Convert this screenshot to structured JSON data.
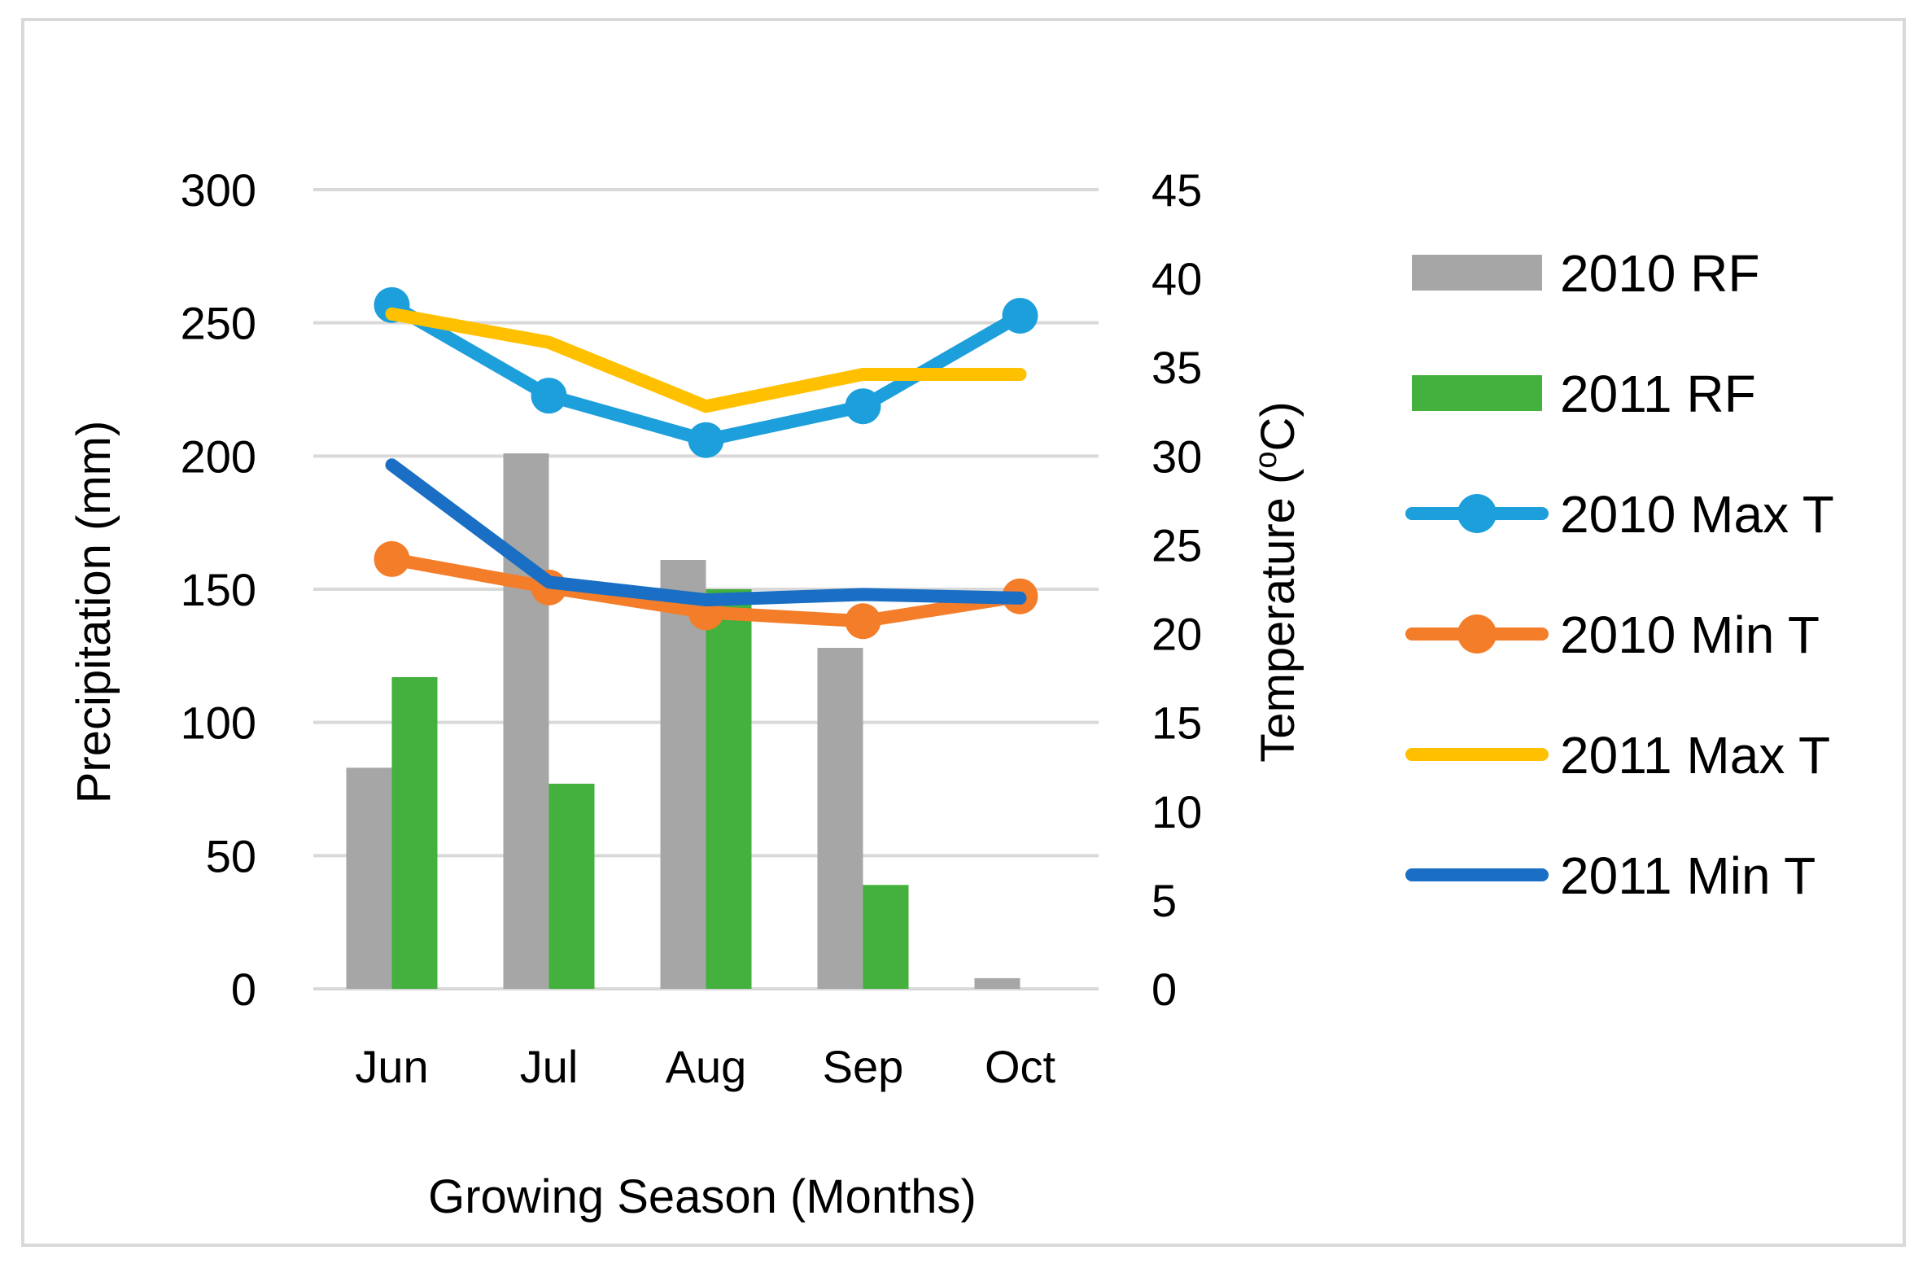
{
  "chart_data": {
    "type": "bar+line",
    "categories": [
      "Jun",
      "Jul",
      "Aug",
      "Sep",
      "Oct"
    ],
    "xlabel": "Growing Season (Months)",
    "ylabel": "Precipitation (mm)",
    "y2label_prefix": "Temperature (",
    "y2label_sup": "o",
    "y2label_suffix": "C)",
    "ylim": [
      0,
      300
    ],
    "y2lim": [
      0,
      45
    ],
    "yticks": [
      0,
      50,
      100,
      150,
      200,
      250,
      300
    ],
    "y2ticks": [
      0,
      5,
      10,
      15,
      20,
      25,
      30,
      35,
      40,
      45
    ],
    "grid": true,
    "legend_position": "right",
    "bar_series": [
      {
        "name": "2010 RF",
        "color": "#a6a6a6",
        "values": [
          83,
          201,
          161,
          128,
          4
        ]
      },
      {
        "name": "2011 RF",
        "color": "#44b03d",
        "values": [
          117,
          77,
          150,
          39,
          0
        ]
      }
    ],
    "line_series": [
      {
        "name": "2010 Max T",
        "color": "#1d9fdb",
        "markers": true,
        "values": [
          38.5,
          33.4,
          30.9,
          32.8,
          37.9
        ]
      },
      {
        "name": "2010 Min T",
        "color": "#f47d2a",
        "markers": true,
        "values": [
          24.2,
          22.6,
          21.2,
          20.7,
          22.1
        ]
      },
      {
        "name": "2011 Max T",
        "color": "#ffc000",
        "markers": false,
        "values": [
          38.0,
          36.4,
          32.8,
          34.6,
          34.6
        ]
      },
      {
        "name": "2011 Min T",
        "color": "#1a6fc4",
        "markers": false,
        "values": [
          29.5,
          22.9,
          21.9,
          22.2,
          22.0
        ]
      }
    ]
  }
}
